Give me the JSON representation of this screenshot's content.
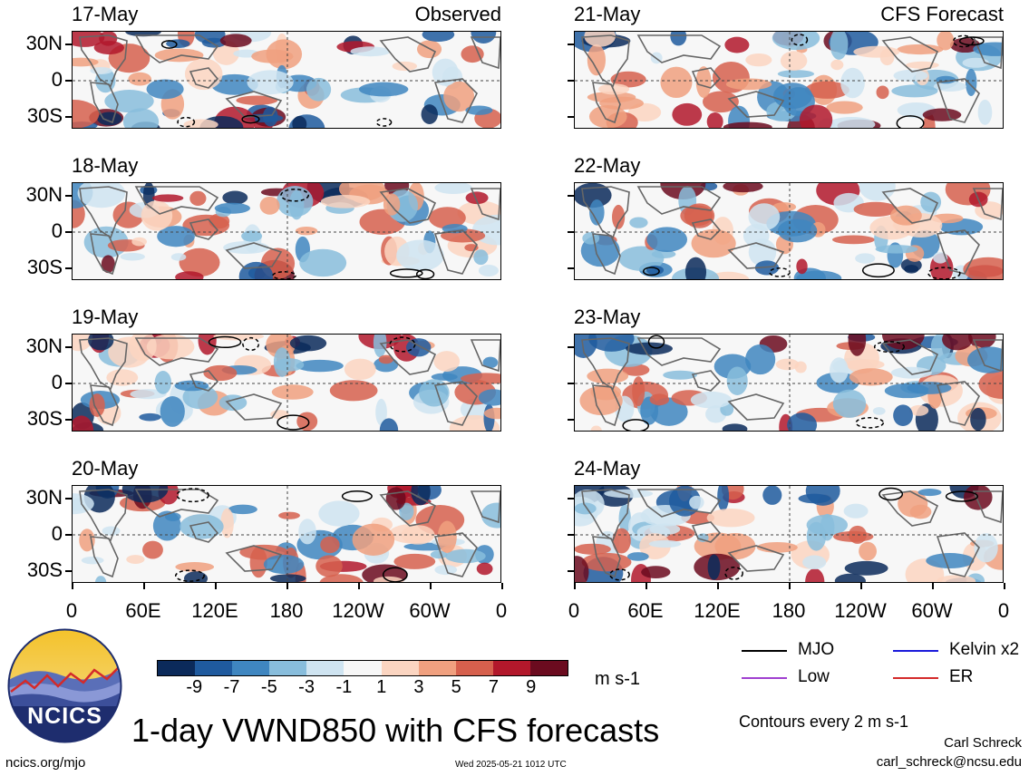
{
  "left_panels": [
    {
      "date": "17-May",
      "tag": "Observed"
    },
    {
      "date": "18-May",
      "tag": ""
    },
    {
      "date": "19-May",
      "tag": ""
    },
    {
      "date": "20-May",
      "tag": ""
    }
  ],
  "right_panels": [
    {
      "date": "21-May",
      "tag": "CFS Forecast"
    },
    {
      "date": "22-May",
      "tag": ""
    },
    {
      "date": "23-May",
      "tag": ""
    },
    {
      "date": "24-May",
      "tag": ""
    }
  ],
  "lat_labels": [
    "30N",
    "0",
    "30S"
  ],
  "lon_labels": [
    "0",
    "60E",
    "120E",
    "180",
    "120W",
    "60W",
    "0"
  ],
  "colorbar": {
    "labels": [
      "-9",
      "-7",
      "-5",
      "-3",
      "-1",
      "1",
      "3",
      "5",
      "7",
      "9"
    ],
    "colors": [
      "#0b2a5a",
      "#1f5a9e",
      "#3f86c0",
      "#88bddc",
      "#cfe4f1",
      "#f7f7f7",
      "#fbd5c1",
      "#f0a07f",
      "#d6604d",
      "#b2182b",
      "#6b0b1f"
    ],
    "units": "m s-1"
  },
  "legend": [
    {
      "label": "MJO",
      "color": "#000000",
      "style": "solid"
    },
    {
      "label": "Kelvin x2",
      "color": "#1a1adb",
      "style": "solid"
    },
    {
      "label": "Low",
      "color": "#a040d0",
      "style": "solid"
    },
    {
      "label": "ER",
      "color": "#d42a2a",
      "style": "solid"
    }
  ],
  "title": "1-day VWND850 with CFS forecasts",
  "contour_note": "Contours every 2 m s-1",
  "author": "Carl Schreck",
  "email": "carl_schreck@ncsu.edu",
  "site": "ncics.org/mjo",
  "timestamp": "Wed 2025-05-21 1012 UTC",
  "logo_text": "NCICS"
}
